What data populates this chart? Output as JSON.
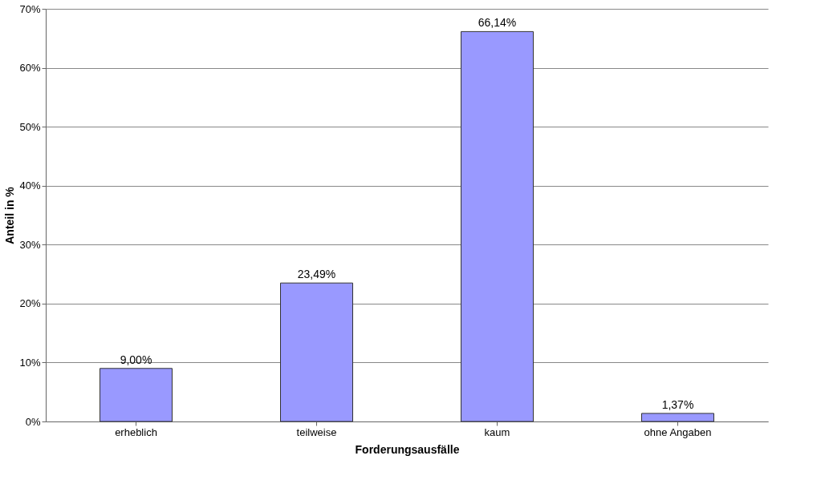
{
  "chart_data": {
    "type": "bar",
    "xlabel": "Forderungsausfälle",
    "ylabel": "Anteil in %",
    "categories": [
      "erheblich",
      "teilweise",
      "kaum",
      "ohne Angaben"
    ],
    "values": [
      9.0,
      23.49,
      66.14,
      1.37
    ],
    "value_labels": [
      "9,00%",
      "23,49%",
      "66,14%",
      "1,37%"
    ],
    "color": "#9999ff",
    "ylim": [
      0,
      70
    ],
    "yticks": [
      {
        "value": 0,
        "label": "0%"
      },
      {
        "value": 10,
        "label": "10%"
      },
      {
        "value": 20,
        "label": "20%"
      },
      {
        "value": 30,
        "label": "30%"
      },
      {
        "value": 40,
        "label": "40%"
      },
      {
        "value": 50,
        "label": "50%"
      },
      {
        "value": 60,
        "label": "60%"
      },
      {
        "value": 70,
        "label": "70%"
      }
    ],
    "grid": "y"
  }
}
